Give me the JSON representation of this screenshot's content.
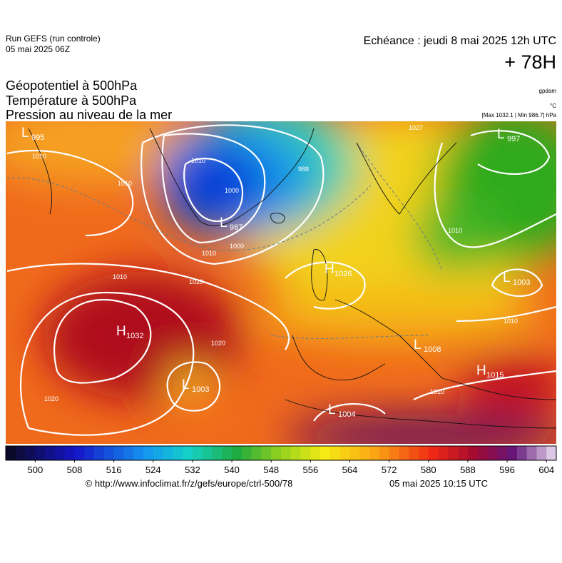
{
  "header": {
    "run": "Run GEFS (run controle)",
    "date": "05 mai 2025 06Z",
    "echeance": "Echéance : jeudi 8 mai 2025 12h UTC",
    "lead": "+ 78H",
    "fields": [
      "Géopotentiel à 500hPa",
      "Température à 500hPa",
      "Pression au niveau de la mer"
    ],
    "units": [
      "gpdam",
      "°C"
    ],
    "extremes": "[Max 1032.1 | Min 986.7] hPa"
  },
  "centers": [
    {
      "letter": "L",
      "value": "995"
    },
    {
      "letter": "L",
      "value": "987"
    },
    {
      "letter": "H",
      "value": "1032"
    },
    {
      "letter": "L",
      "value": "1003"
    },
    {
      "letter": "H",
      "value": "1026"
    },
    {
      "letter": "L",
      "value": "1004"
    },
    {
      "letter": "L",
      "value": "1008"
    },
    {
      "letter": "H",
      "value": "1015"
    },
    {
      "letter": "L",
      "value": "1003"
    },
    {
      "letter": "L",
      "value": "997"
    }
  ],
  "isobar_labels": [
    "1010",
    "1010",
    "1010",
    "1000",
    "988",
    "1010",
    "1000",
    "1020",
    "1020",
    "1020",
    "1010",
    "1010",
    "1010",
    "1010",
    "1027"
  ],
  "colorbar": {
    "lim": [
      494,
      606
    ],
    "ticks": [
      500,
      508,
      516,
      524,
      532,
      540,
      548,
      556,
      564,
      572,
      580,
      588,
      596,
      604
    ]
  },
  "footer": {
    "url": "© http://www.infoclimat.fr/z/gefs/europe/ctrl-500/78",
    "time": "05 mai 2025 10:15 UTC"
  }
}
